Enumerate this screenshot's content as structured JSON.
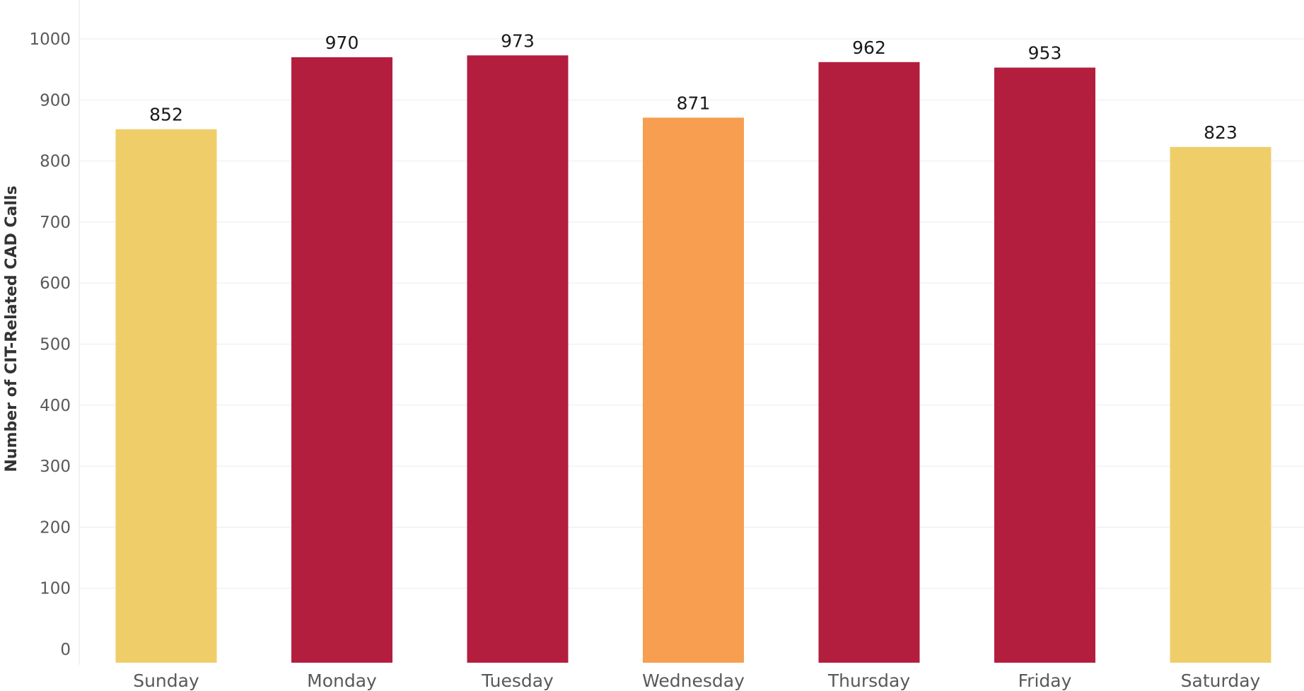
{
  "chart_data": {
    "type": "bar",
    "title": "",
    "xlabel": "",
    "ylabel": "Number of CIT-Related CAD Calls",
    "categories": [
      "Sunday",
      "Monday",
      "Tuesday",
      "Wednesday",
      "Thursday",
      "Friday",
      "Saturday"
    ],
    "values": [
      852,
      970,
      973,
      871,
      962,
      953,
      823
    ],
    "bar_colors": [
      "#EFCE6A",
      "#B41E3E",
      "#B41E3E",
      "#F79E50",
      "#B41E3E",
      "#B41E3E",
      "#EFCE6A"
    ],
    "ylim": [
      0,
      1000
    ],
    "yticks": [
      "0",
      "100",
      "200",
      "300",
      "400",
      "500",
      "600",
      "700",
      "800",
      "900",
      "1000"
    ],
    "grid": true,
    "legend": "none",
    "data_labels": true
  }
}
